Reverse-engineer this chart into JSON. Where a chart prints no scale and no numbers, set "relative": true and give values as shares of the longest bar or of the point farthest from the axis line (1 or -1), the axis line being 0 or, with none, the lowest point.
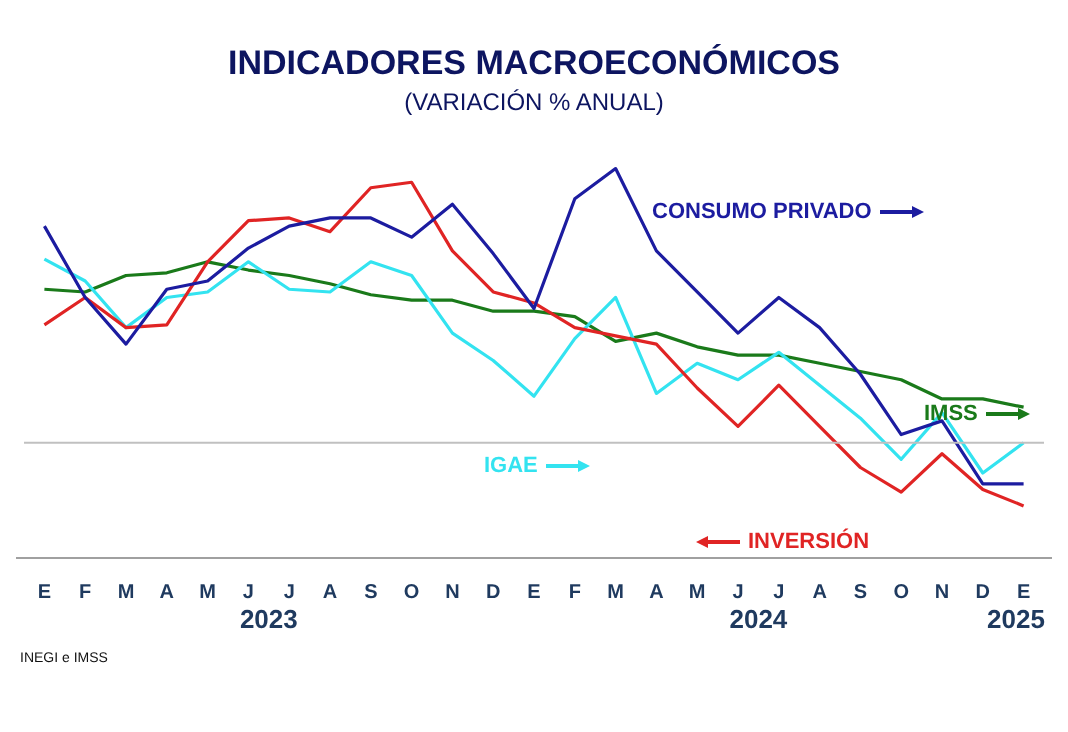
{
  "chart_data": {
    "type": "line",
    "title": "INDICADORES MACROECONÓMICOS",
    "subtitle": "(VARIACIÓN % ANUAL)",
    "relative": true,
    "legend": "right",
    "grid": false,
    "marker": "none",
    "categories": [
      "E",
      "F",
      "M",
      "A",
      "M",
      "J",
      "J",
      "A",
      "S",
      "O",
      "N",
      "D",
      "E",
      "F",
      "M",
      "A",
      "M",
      "J",
      "J",
      "A",
      "S",
      "O",
      "N",
      "D",
      "E"
    ],
    "series": [
      {
        "name": "CONSUMO PRIVADO",
        "color": "#1c1ca0",
        "values": [
          0.79,
          0.53,
          0.36,
          0.56,
          0.59,
          0.71,
          0.79,
          0.82,
          0.82,
          0.75,
          0.87,
          0.69,
          0.49,
          0.89,
          1,
          0.7,
          0.55,
          0.4,
          0.53,
          0.42,
          0.25,
          0.03,
          0.08,
          -0.15,
          -0.15
        ]
      },
      {
        "name": "INVERSIÓN",
        "color": "#e02424",
        "values": [
          0.43,
          0.53,
          0.42,
          0.43,
          0.66,
          0.81,
          0.82,
          0.77,
          0.93,
          0.95,
          0.7,
          0.55,
          0.51,
          0.42,
          0.39,
          0.36,
          0.2,
          0.06,
          0.21,
          0.06,
          -0.09,
          -0.18,
          -0.04,
          -0.17,
          -0.23
        ]
      },
      {
        "name": "IGAE",
        "color": "#33e3f0",
        "values": [
          0.67,
          0.59,
          0.42,
          0.53,
          0.55,
          0.66,
          0.56,
          0.55,
          0.66,
          0.61,
          0.4,
          0.3,
          0.17,
          0.38,
          0.53,
          0.18,
          0.29,
          0.23,
          0.33,
          0.21,
          0.09,
          -0.06,
          0.11,
          -0.11,
          0
        ]
      },
      {
        "name": "IMSS",
        "color": "#1a7a1a",
        "values": [
          0.56,
          0.55,
          0.61,
          0.62,
          0.66,
          0.63,
          0.61,
          0.58,
          0.54,
          0.52,
          0.52,
          0.48,
          0.48,
          0.46,
          0.37,
          0.4,
          0.35,
          0.32,
          0.32,
          0.29,
          0.26,
          0.23,
          0.16,
          0.16,
          0.13
        ]
      }
    ],
    "annotations": [
      "2023",
      "2024",
      "2025",
      "INEGI e IMSS"
    ]
  }
}
